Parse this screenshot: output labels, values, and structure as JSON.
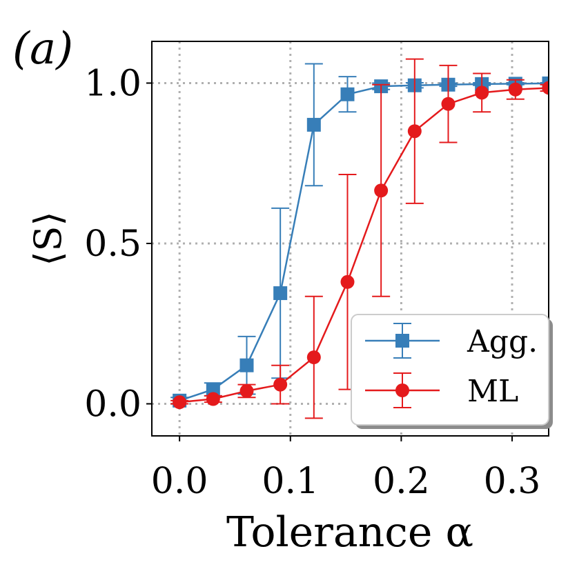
{
  "chart_data": {
    "type": "line",
    "panel_label": "(a)",
    "title": "",
    "xlabel": "Tolerance α",
    "ylabel": "⟨S⟩",
    "xlim": [
      -0.025,
      0.333
    ],
    "ylim": [
      -0.1,
      1.13
    ],
    "xticks": [
      0.0,
      0.1,
      0.2,
      0.3
    ],
    "xtick_labels": [
      "0.0",
      "0.1",
      "0.2",
      "0.3"
    ],
    "yticks": [
      0.0,
      0.5,
      1.0
    ],
    "ytick_labels": [
      "0.0",
      "0.5",
      "1.0"
    ],
    "grid": true,
    "legend_position": "bottom-right",
    "series": [
      {
        "name": "Agg.",
        "color": "#377eb8",
        "marker": "square",
        "x": [
          0.0,
          0.0303,
          0.0606,
          0.0909,
          0.1212,
          0.1515,
          0.1818,
          0.2121,
          0.2424,
          0.2727,
          0.303,
          0.3333
        ],
        "y": [
          0.01,
          0.045,
          0.12,
          0.345,
          0.87,
          0.965,
          0.99,
          0.993,
          0.995,
          0.997,
          0.998,
          0.999
        ],
        "err": [
          0.01,
          0.02,
          0.09,
          0.265,
          0.19,
          0.055,
          0.01,
          0.008,
          0.005,
          0.004,
          0.003,
          0.002
        ]
      },
      {
        "name": "ML",
        "color": "#e41a1c",
        "marker": "circle",
        "x": [
          0.0,
          0.0303,
          0.0606,
          0.0909,
          0.1212,
          0.1515,
          0.1818,
          0.2121,
          0.2424,
          0.2727,
          0.303,
          0.3333
        ],
        "y": [
          0.005,
          0.015,
          0.04,
          0.06,
          0.145,
          0.38,
          0.665,
          0.85,
          0.935,
          0.97,
          0.98,
          0.985
        ],
        "err": [
          0.005,
          0.01,
          0.02,
          0.06,
          0.19,
          0.335,
          0.33,
          0.225,
          0.12,
          0.06,
          0.03,
          0.01
        ]
      }
    ]
  }
}
